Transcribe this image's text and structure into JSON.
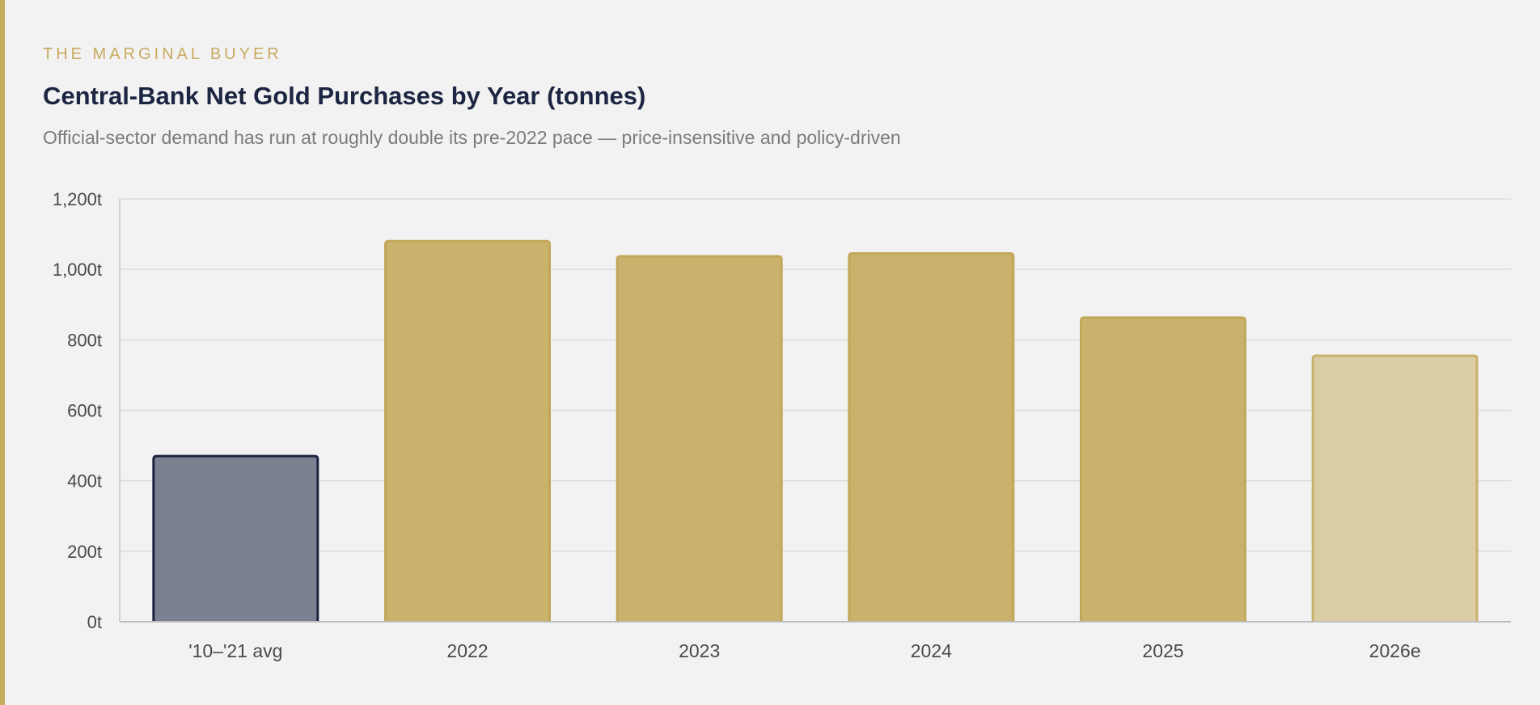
{
  "header": {
    "eyebrow": "THE MARGINAL BUYER",
    "title": "Central-Bank Net Gold Purchases by Year (tonnes)",
    "subtitle": "Official-sector demand has run at roughly double its pre-2022 pace — price-insensitive and policy-driven"
  },
  "colors": {
    "accent": "#c7ad5e",
    "baseline_fill": "#7b8190",
    "baseline_stroke": "#1c2541",
    "bar_fill": "#c9b26c",
    "bar_stroke": "#c2a75a",
    "estimate_fill": "#dacca3",
    "estimate_stroke": "#c9b26c"
  },
  "chart_data": {
    "type": "bar",
    "title": "Central-Bank Net Gold Purchases by Year (tonnes)",
    "subtitle": "Official-sector demand has run at roughly double its pre-2022 pace — price-insensitive and policy-driven",
    "categories": [
      "'10–'21 avg",
      "2022",
      "2023",
      "2024",
      "2025",
      "2026e"
    ],
    "values": [
      470,
      1080,
      1037,
      1045,
      863,
      755
    ],
    "styles": [
      "baseline",
      "actual",
      "actual",
      "actual",
      "actual",
      "estimate"
    ],
    "xlabel": "",
    "ylabel": "",
    "ylim": [
      0,
      1200
    ],
    "yticks": [
      0,
      200,
      400,
      600,
      800,
      1000,
      1200
    ],
    "ytick_labels": [
      "0t",
      "200t",
      "400t",
      "600t",
      "800t",
      "1,000t",
      "1,200t"
    ],
    "grid": true,
    "legend": "none"
  }
}
